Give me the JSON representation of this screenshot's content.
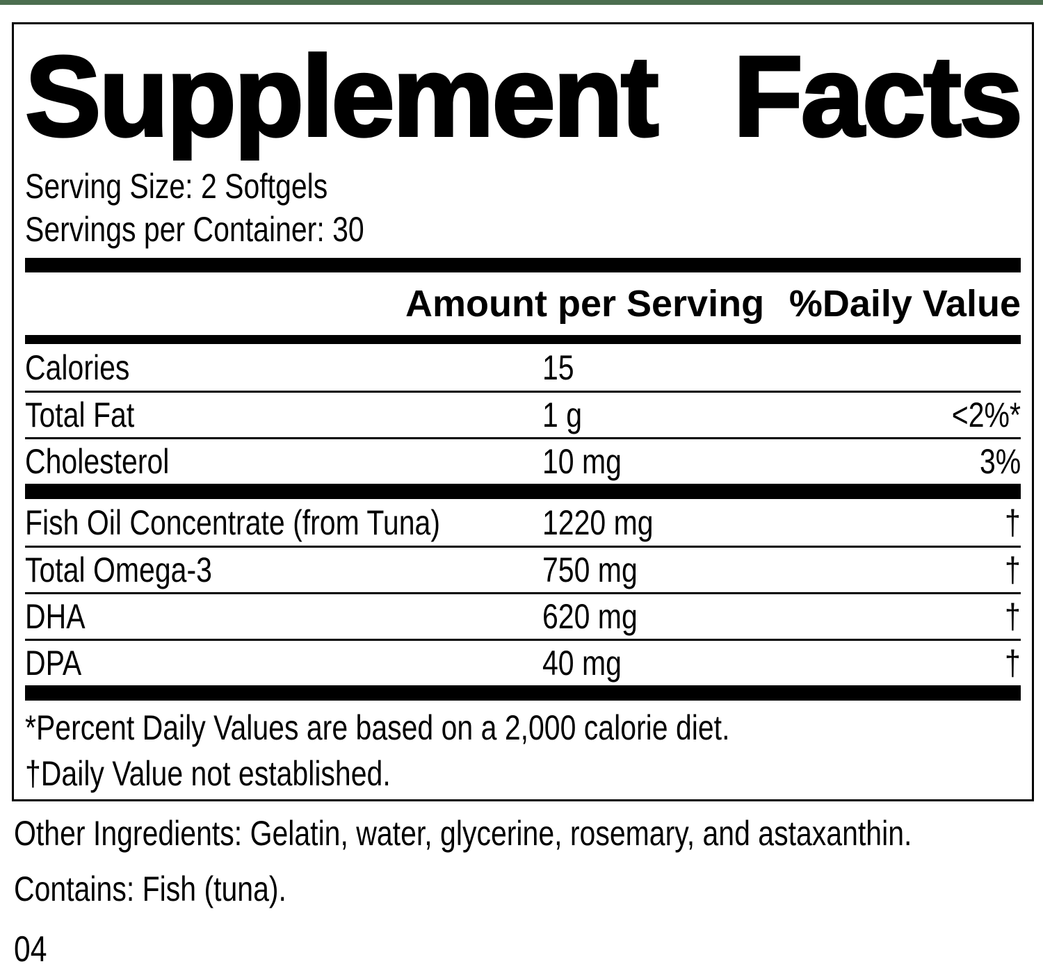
{
  "page": {
    "top_strip_color": "#4c6e4f",
    "footer_code": "04"
  },
  "label": {
    "title_left": "Supplement",
    "title_right": "Facts",
    "serving_size": "Serving Size: 2 Softgels",
    "servings_per_container": "Servings per Container: 30",
    "columns": {
      "amount": "Amount per Serving",
      "daily_value": "%Daily Value"
    },
    "nutrients": [
      {
        "name": "Calories",
        "amount": "15",
        "dv": ""
      },
      {
        "name": "Total Fat",
        "amount": "1 g",
        "dv": "<2%*"
      },
      {
        "name": "Cholesterol",
        "amount": "10 mg",
        "dv": "3%"
      }
    ],
    "ingredients": [
      {
        "name": "Fish Oil Concentrate (from Tuna)",
        "amount": "1220 mg",
        "dv": "†"
      },
      {
        "name": "Total Omega-3",
        "amount": "750 mg",
        "dv": "†"
      },
      {
        "name": "DHA",
        "amount": "620 mg",
        "dv": "†"
      },
      {
        "name": "DPA",
        "amount": "40 mg",
        "dv": "†"
      }
    ],
    "footnotes": [
      "*Percent Daily Values are based on a 2,000 calorie diet.",
      "†Daily Value not established."
    ],
    "other_ingredients": "Other Ingredients: Gelatin, water, glycerine, rosemary, and astaxanthin.",
    "contains": "Contains: Fish (tuna)."
  }
}
